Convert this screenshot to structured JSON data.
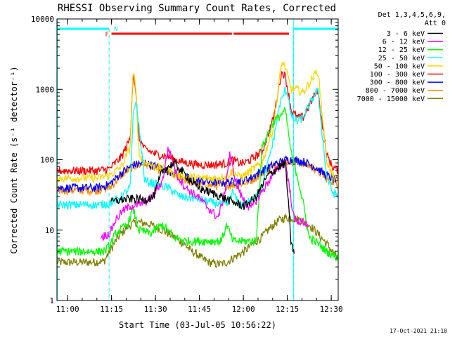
{
  "chart_data": {
    "type": "line",
    "title": "RHESSI Observing Summary Count Rates, Corrected",
    "xlabel": "Start Time (03-Jul-05 10:56:22)",
    "ylabel": "Corrected Count Rate (s⁻¹ detector⁻¹)",
    "yscale": "log",
    "ylim": [
      1,
      10000
    ],
    "xlim_minutes": [
      0,
      96
    ],
    "x_tick_labels": [
      "11:00",
      "11:15",
      "11:30",
      "11:45",
      "12:00",
      "12:15",
      "12:30"
    ],
    "x_tick_minutes": [
      3.63,
      18.63,
      33.63,
      48.63,
      63.63,
      78.63,
      93.63
    ],
    "y_tick_labels": [
      "1",
      "10",
      "100",
      "1000",
      "10000"
    ],
    "y_tick_values": [
      1,
      10,
      100,
      1000,
      10000
    ],
    "grid": false,
    "legend_placement": "right",
    "legend_header": [
      "Det 1,3,4,5,6,9,",
      "Att 0"
    ],
    "footer_text": "17-Oct-2021 21:10",
    "annotations": {
      "night_label": "N",
      "flare_label": "F",
      "night_intervals": [
        [
          0,
          17.8
        ],
        [
          80.7,
          96
        ]
      ],
      "flare_intervals": [
        [
          18.6,
          59.7
        ],
        [
          60.3,
          79.2
        ]
      ],
      "night_color": "#00ffff",
      "flare_color": "#ff0000"
    },
    "series": [
      {
        "name": "3 - 6 keV",
        "color": "#000000",
        "start": 18.5,
        "end": 81,
        "x": [
          18.5,
          22,
          26,
          30,
          33,
          36,
          40,
          44,
          48,
          52,
          56,
          60,
          64,
          68,
          72,
          76,
          78,
          80,
          81
        ],
        "y": [
          25,
          27,
          28,
          27,
          30,
          70,
          90,
          60,
          40,
          35,
          30,
          25,
          22,
          30,
          60,
          80,
          90,
          6,
          5
        ]
      },
      {
        "name": "6 - 12 keV",
        "color": "#ff00ff",
        "start": 15,
        "end": 86,
        "x": [
          15,
          18,
          20,
          22,
          25,
          28,
          32,
          36,
          38,
          41,
          44,
          48,
          52,
          55,
          57,
          59,
          61,
          63,
          66,
          70,
          74,
          78,
          81,
          84,
          86
        ],
        "y": [
          8,
          9,
          14,
          18,
          22,
          23,
          28,
          50,
          150,
          60,
          40,
          30,
          20,
          15,
          30,
          120,
          50,
          30,
          20,
          35,
          65,
          95,
          14,
          13,
          12
        ]
      },
      {
        "name": "12 - 25 keV",
        "color": "#00ff00",
        "start": 0,
        "end": 96,
        "x": [
          0,
          10,
          16,
          18,
          20,
          24,
          26,
          28,
          32,
          36,
          40,
          44,
          48,
          52,
          56,
          58,
          60,
          64,
          68,
          70,
          74,
          78,
          80,
          82,
          84,
          86,
          88,
          90,
          92,
          94,
          96
        ],
        "y": [
          5,
          5,
          5,
          6,
          9,
          12,
          20,
          10,
          9,
          12,
          8,
          7,
          7,
          7,
          7,
          12,
          7,
          7,
          7,
          150,
          350,
          500,
          120,
          60,
          25,
          8,
          7,
          6,
          5,
          4.5,
          4
        ]
      },
      {
        "name": "25 - 50 keV",
        "color": "#00ffff",
        "start": 0,
        "end": 96,
        "x": [
          0,
          14,
          18,
          22,
          25,
          26,
          27,
          30,
          34,
          38,
          42,
          48,
          54,
          58,
          60,
          62,
          64,
          66,
          70,
          74,
          76,
          78,
          79,
          80,
          82,
          84,
          87,
          89,
          90,
          92,
          94,
          96
        ],
        "y": [
          23,
          23,
          24,
          30,
          40,
          400,
          700,
          50,
          45,
          40,
          30,
          28,
          24,
          23,
          35,
          24,
          24,
          26,
          40,
          200,
          600,
          1000,
          800,
          400,
          350,
          400,
          700,
          1000,
          400,
          60,
          35,
          30
        ]
      },
      {
        "name": "50 - 100 keV",
        "color": "#ffd700",
        "start": 0,
        "end": 96,
        "x": [
          0,
          14,
          18,
          22,
          25,
          26,
          27,
          28,
          30,
          34,
          38,
          42,
          48,
          54,
          58,
          60,
          62,
          64,
          66,
          70,
          74,
          76,
          77,
          78,
          79,
          80,
          82,
          84,
          87,
          89,
          90,
          92,
          94,
          96
        ],
        "y": [
          55,
          55,
          60,
          80,
          150,
          1900,
          900,
          120,
          90,
          80,
          70,
          60,
          55,
          55,
          58,
          70,
          58,
          60,
          70,
          90,
          300,
          1500,
          2500,
          2000,
          1400,
          1000,
          1000,
          900,
          1400,
          1900,
          800,
          100,
          60,
          50
        ]
      },
      {
        "name": "100 - 300 keV",
        "color": "#ff0000",
        "start": 0,
        "end": 96,
        "x": [
          0,
          14,
          18,
          22,
          25,
          26,
          27,
          28,
          30,
          34,
          38,
          42,
          48,
          54,
          58,
          60,
          62,
          64,
          66,
          70,
          74,
          76,
          77,
          78,
          79,
          80,
          82,
          84,
          87,
          89,
          90,
          92,
          94,
          96
        ],
        "y": [
          70,
          70,
          75,
          110,
          200,
          1800,
          800,
          200,
          140,
          120,
          110,
          95,
          85,
          85,
          90,
          100,
          90,
          90,
          100,
          130,
          400,
          1300,
          1800,
          1500,
          900,
          500,
          400,
          400,
          700,
          1000,
          500,
          120,
          80,
          70
        ]
      },
      {
        "name": "300 - 800 keV",
        "color": "#0000ff",
        "start": 0,
        "end": 96,
        "x": [
          0,
          14,
          18,
          22,
          26,
          30,
          34,
          38,
          42,
          48,
          54,
          58,
          62,
          66,
          70,
          74,
          78,
          80,
          84,
          88,
          92,
          96
        ],
        "y": [
          40,
          40,
          45,
          65,
          85,
          90,
          80,
          70,
          60,
          50,
          48,
          48,
          50,
          55,
          70,
          85,
          100,
          100,
          95,
          80,
          60,
          50
        ]
      },
      {
        "name": "800 - 7000 keV",
        "color": "#ff8c00",
        "start": 0,
        "end": 96,
        "x": [
          0,
          14,
          18,
          22,
          26,
          30,
          34,
          38,
          42,
          48,
          54,
          58,
          62,
          66,
          70,
          74,
          78,
          80,
          84,
          88,
          92,
          96
        ],
        "y": [
          37,
          37,
          40,
          60,
          80,
          88,
          75,
          65,
          55,
          45,
          43,
          43,
          45,
          50,
          65,
          80,
          95,
          95,
          90,
          75,
          55,
          45
        ]
      },
      {
        "name": "7000 - 15000 keV",
        "color": "#808000",
        "start": 0,
        "end": 96,
        "x": [
          0,
          10,
          16,
          18,
          20,
          22,
          24,
          26,
          28,
          30,
          32,
          34,
          36,
          38,
          40,
          42,
          44,
          46,
          48,
          50,
          52,
          54,
          56,
          58,
          60,
          62,
          64,
          66,
          68,
          70,
          72,
          74,
          76,
          78,
          80,
          82,
          84,
          86,
          88,
          90,
          92,
          94,
          96
        ],
        "y": [
          3.5,
          3.5,
          3.6,
          5,
          7,
          9,
          11,
          12.5,
          13,
          12.5,
          12,
          11,
          10,
          9,
          8,
          7,
          6,
          5,
          4.5,
          3.8,
          3.5,
          3.3,
          3.3,
          3.5,
          4,
          4.5,
          5,
          6,
          7,
          8,
          10,
          12,
          14,
          15,
          15,
          14.5,
          13.5,
          12,
          10,
          8,
          6.5,
          5,
          4
        ]
      }
    ]
  }
}
